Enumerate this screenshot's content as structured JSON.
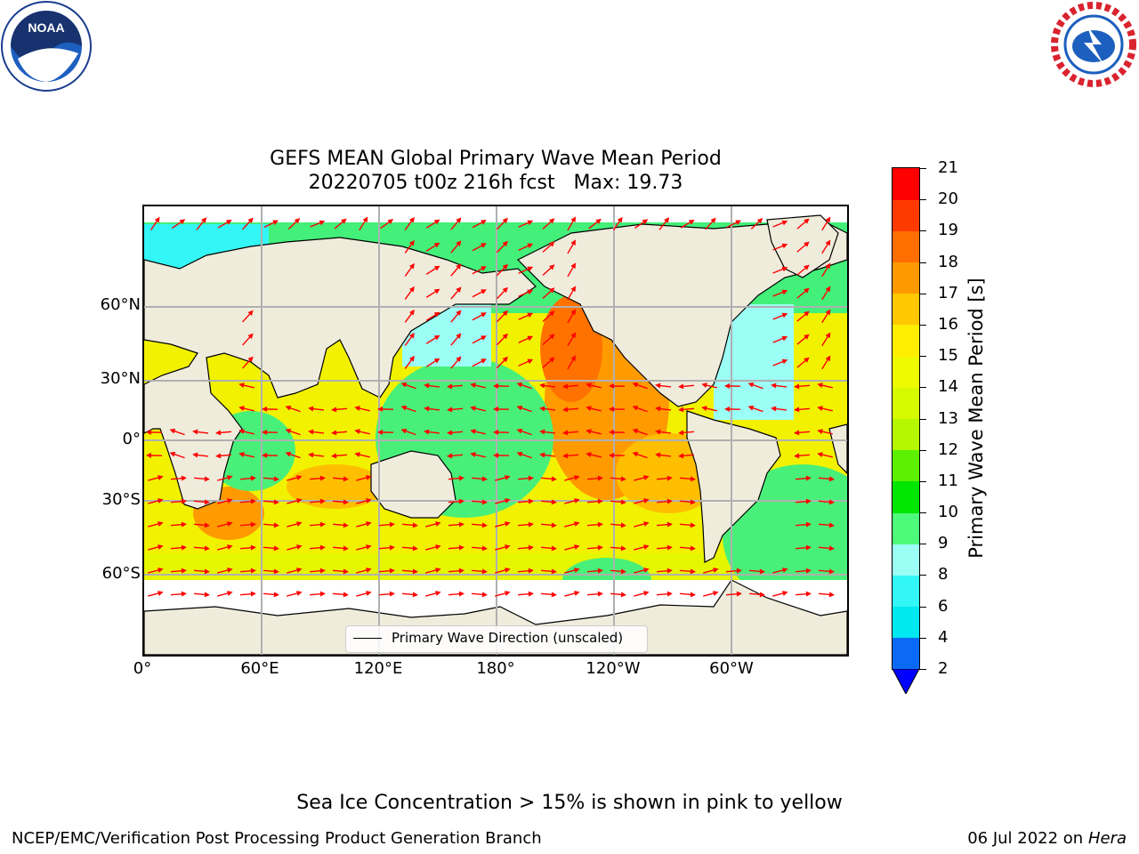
{
  "title_line1": "GEFS MEAN Global Primary Wave Mean Period",
  "title_line2": "20220705 t00z 216h fcst   Max: 19.73",
  "x_ticks": [
    "0°",
    "60°E",
    "120°E",
    "180°",
    "120°W",
    "60°W"
  ],
  "y_ticks": [
    "60°N",
    "30°N",
    "0°",
    "30°S",
    "60°S"
  ],
  "legend_label": "Primary Wave Direction (unscaled)",
  "colorbar": {
    "label": "Primary Wave Mean Period [s]",
    "ticks": [
      "2",
      "4",
      "6",
      "8",
      "9",
      "10",
      "11",
      "12",
      "13",
      "14",
      "15",
      "16",
      "17",
      "18",
      "19",
      "20",
      "21"
    ],
    "colors": [
      "#0a6af5",
      "#00e8f0",
      "#33f6f6",
      "#9cfff6",
      "#4dfa7a",
      "#00e600",
      "#5cf000",
      "#b5f700",
      "#d6fa00",
      "#eefa00",
      "#ffee00",
      "#ffc800",
      "#ff9900",
      "#ff6e00",
      "#ff3a00",
      "#ff0000"
    ],
    "under_color": "#0000ff"
  },
  "map_colors": {
    "land": "#efecdc",
    "ocean_low": "#00e0f0",
    "ice": "#ffffff"
  },
  "note": "Sea Ice Concentration > 15% is shown in pink to yellow",
  "footer_left": "NCEP/EMC/Verification Post Processing Product Generation Branch",
  "footer_right_date": "06 Jul 2022 on ",
  "footer_right_host": "Hera",
  "logos": {
    "left": "NOAA",
    "right": "NATIONAL WEATHER SERVICE"
  }
}
